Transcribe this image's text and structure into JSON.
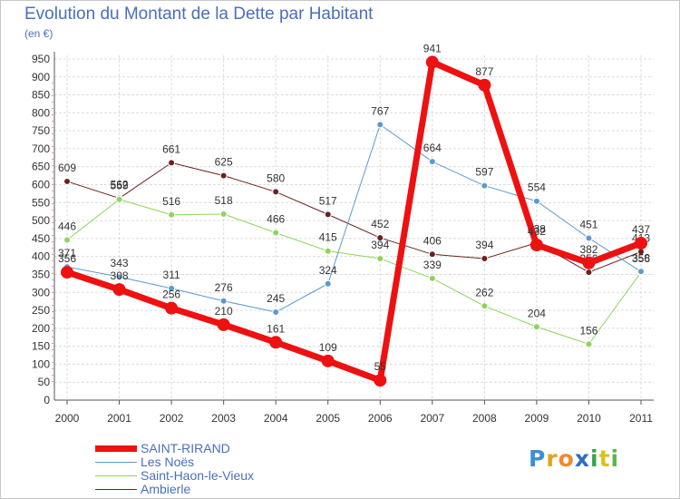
{
  "title": "Evolution du Montant de la Dette par Habitant",
  "unit_label": "(en €)",
  "logo": {
    "letters": [
      "P",
      "r",
      "o",
      "x",
      "i",
      "t",
      "i"
    ],
    "colors": [
      "#3b8fd4",
      "#e8a21a",
      "#f08a2b",
      "#2a6fc1",
      "#3aa34b",
      "#d8c21a",
      "#5ab84a"
    ]
  },
  "chart_data": {
    "type": "line",
    "x": [
      "2000",
      "2001",
      "2002",
      "2003",
      "2004",
      "2005",
      "2006",
      "2007",
      "2008",
      "2009",
      "2010",
      "2011"
    ],
    "y_ticks": [
      "0",
      "50",
      "100",
      "150",
      "200",
      "250",
      "300",
      "350",
      "400",
      "450",
      "500",
      "550",
      "600",
      "650",
      "700",
      "750",
      "800",
      "850",
      "900",
      "950"
    ],
    "ylim": [
      0,
      960
    ],
    "grid": true,
    "legend_position": "bottom-left",
    "series": [
      {
        "name": "Ambierle",
        "color": "#6e1e1e",
        "width": 1,
        "values": [
          609,
          562,
          661,
          625,
          580,
          517,
          452,
          406,
          394,
          438,
          356,
          413
        ],
        "labels": [
          "609",
          "562",
          "661",
          "625",
          "580",
          "517",
          "452",
          "406",
          "394",
          "438",
          "356",
          "413"
        ]
      },
      {
        "name": "Saint-Haon-le-Vieux",
        "color": "#8ed45a",
        "width": 1,
        "values": [
          446,
          559,
          516,
          518,
          466,
          415,
          394,
          339,
          262,
          204,
          156,
          356
        ],
        "labels": [
          "446",
          "559",
          "516",
          "518",
          "466",
          "415",
          "394",
          "339",
          "262",
          "204",
          "156",
          "356"
        ]
      },
      {
        "name": "Les Noës",
        "color": "#5a9ad2",
        "width": 1,
        "values": [
          371,
          343,
          311,
          276,
          245,
          324,
          767,
          664,
          597,
          554,
          451,
          358
        ],
        "labels": [
          "371",
          "343",
          "311",
          "276",
          "245",
          "324",
          "767",
          "664",
          "597",
          "554",
          "451",
          "358"
        ]
      },
      {
        "name": "SAINT-RIRAND",
        "color": "#ee1111",
        "width": 7,
        "values": [
          356,
          308,
          256,
          210,
          161,
          109,
          55,
          941,
          877,
          432,
          382,
          437
        ],
        "labels": [
          "356",
          "308",
          "256",
          "210",
          "161",
          "109",
          "55",
          "941",
          "877",
          "432",
          "382",
          "437"
        ]
      }
    ],
    "legend": [
      {
        "name": "SAINT-RIRAND",
        "color": "#ee1111",
        "width": 7
      },
      {
        "name": "Les Noës",
        "color": "#5a9ad2",
        "width": 1
      },
      {
        "name": "Saint-Haon-le-Vieux",
        "color": "#8ed45a",
        "width": 1
      },
      {
        "name": "Ambierle",
        "color": "#6e1e1e",
        "width": 1
      }
    ]
  }
}
